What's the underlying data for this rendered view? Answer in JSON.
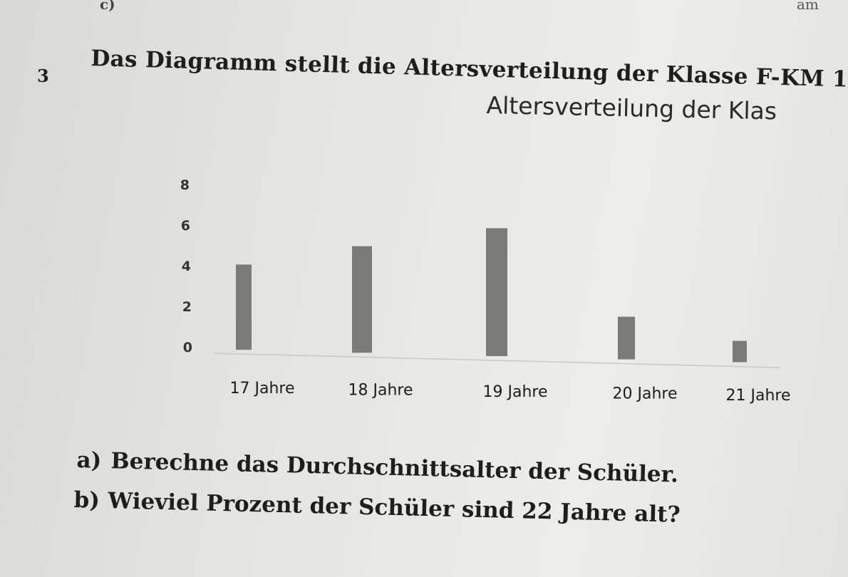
{
  "header": {
    "top_left_fragment": "c)",
    "top_right_fragment": "am"
  },
  "task": {
    "number": "3",
    "intro": "Das Diagramm stellt die Altersverteilung der Klasse F-KM 1"
  },
  "chart_data": {
    "type": "bar",
    "title": "Altersverteilung der Klas",
    "categories": [
      "17 Jahre",
      "18 Jahre",
      "19 Jahre",
      "20 Jahre",
      "21 Jahre"
    ],
    "values": [
      4,
      5,
      6,
      2,
      1
    ],
    "yticks": [
      0,
      2,
      4,
      6,
      8
    ],
    "ylim": [
      0,
      8
    ],
    "xlabel": "",
    "ylabel": "",
    "bar_color": "#7a7a78",
    "grid": false
  },
  "questions": [
    {
      "letter": "a)",
      "text": "Berechne das Durchschnittsalter der Schüler."
    },
    {
      "letter": "b)",
      "text": "Wieviel Prozent der Schüler sind 22 Jahre alt?"
    }
  ]
}
